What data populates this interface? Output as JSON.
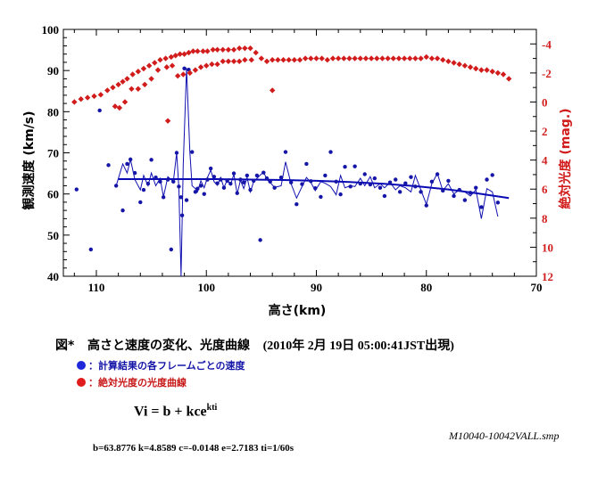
{
  "chart_data": {
    "type": "scatter",
    "title": "",
    "xlabel": "高さ(km)",
    "ylabel": "観測速度 (km/s)",
    "y2label": "絶対光度 (mag.)",
    "xlim": [
      113,
      70
    ],
    "ylim": [
      40,
      100
    ],
    "y2lim": [
      12,
      -5
    ],
    "xticks": [
      110,
      100,
      90,
      80,
      70
    ],
    "yticks": [
      40,
      50,
      60,
      70,
      80,
      90,
      100
    ],
    "y2ticks": [
      -4,
      -2,
      0,
      2,
      4,
      6,
      8,
      10,
      12
    ],
    "grid": false,
    "colors": {
      "velocity": "#1515a8",
      "magnitude": "#d21c1c",
      "fit": "#0a0ab4"
    },
    "series": [
      {
        "name": "velocity",
        "axis": "left",
        "marker": "dot",
        "x": [
          111.8,
          110.5,
          109.7,
          108.9,
          108.2,
          107.6,
          107.2,
          106.9,
          106.5,
          106.0,
          105.7,
          105.3,
          105.0,
          104.6,
          104.2,
          103.9,
          103.5,
          103.2,
          103.0,
          102.7,
          102.5,
          102.3,
          102.2,
          102.0,
          101.8,
          101.6,
          101.3,
          101.0,
          100.8,
          100.5,
          100.2,
          99.9,
          99.6,
          99.3,
          99.0,
          98.7,
          98.4,
          98.1,
          97.8,
          97.5,
          97.2,
          96.9,
          96.6,
          96.3,
          96.0,
          95.7,
          95.4,
          95.1,
          94.8,
          94.5,
          94.2,
          93.8,
          93.2,
          92.8,
          92.3,
          91.8,
          91.3,
          90.9,
          90.5,
          90.1,
          89.6,
          89.2,
          88.7,
          88.2,
          87.8,
          87.4,
          86.9,
          86.5,
          86.0,
          85.6,
          85.1,
          84.7,
          84.2,
          83.8,
          83.3,
          82.8,
          82.4,
          81.9,
          81.4,
          81.0,
          80.5,
          80.0,
          79.5,
          79.0,
          78.5,
          78.0,
          77.5,
          77.0,
          76.5,
          76.0,
          75.5,
          75.0,
          74.5,
          74.0,
          73.5
        ],
        "y": [
          61.1,
          46.5,
          80.3,
          67.0,
          62.0,
          56.0,
          67.3,
          68.4,
          65.1,
          58.0,
          61.0,
          62.5,
          68.3,
          64.0,
          63.0,
          59.2,
          63.5,
          46.5,
          63.0,
          70.0,
          61.8,
          59.2,
          54.8,
          90.5,
          58.5,
          90.2,
          70.2,
          60.5,
          61.3,
          62.0,
          60.0,
          63.5,
          66.2,
          64.2,
          62.6,
          63.5,
          61.5,
          63.2,
          62.5,
          65.0,
          60.2,
          63.5,
          62.8,
          64.5,
          61.0,
          63.2,
          64.5,
          48.8,
          65.2,
          63.8,
          63.0,
          61.5,
          64.0,
          70.2,
          62.8,
          57.5,
          62.4,
          67.3,
          63.1,
          61.4,
          59.3,
          64.5,
          70.2,
          63.0,
          59.9,
          66.6,
          61.8,
          66.7,
          62.5,
          64.8,
          62.3,
          63.8,
          61.5,
          59.5,
          62.8,
          63.5,
          60.5,
          62.6,
          64.1,
          61.8,
          60.5,
          57.2,
          63.0,
          64.8,
          60.8,
          63.2,
          59.5,
          61.0,
          58.5,
          60.3,
          61.5,
          56.8,
          63.5,
          64.6,
          57.9
        ]
      },
      {
        "name": "velocity-line",
        "axis": "left",
        "type": "line",
        "x": [
          108.2,
          107.6,
          107.2,
          106.9,
          106.5,
          106.0,
          105.7,
          105.3,
          105.0,
          104.6,
          104.2,
          103.9,
          103.5,
          103.0,
          102.7,
          102.5,
          102.3,
          102.1,
          101.8,
          101.5,
          101.3,
          101.0,
          100.8,
          100.5,
          100.2,
          99.9,
          99.6,
          99.3,
          99.0,
          98.7,
          98.4,
          98.1,
          97.8,
          97.5,
          97.2,
          96.9,
          96.6,
          96.3,
          96.0,
          95.7,
          95.4,
          94.8,
          94.5,
          94.2,
          93.8,
          93.2,
          92.8,
          92.3,
          91.8,
          91.3,
          90.9,
          90.5,
          90.1,
          89.6,
          89.2,
          88.7,
          88.2,
          87.8,
          87.4,
          86.9,
          86.5,
          86.0,
          85.6,
          85.1,
          84.7,
          84.2,
          83.8,
          83.3,
          82.8,
          82.4,
          81.9,
          81.4,
          81.0,
          80.5,
          80.0,
          79.5,
          79.0,
          78.5,
          78.0,
          77.5,
          77.0,
          76.5,
          76.0,
          75.5,
          75.0,
          74.5,
          74.0,
          73.5
        ],
        "y": [
          62.0,
          67.3,
          65.1,
          68.4,
          63.5,
          61.0,
          64.5,
          62.0,
          65.1,
          62.0,
          63.8,
          59.3,
          64.2,
          63.0,
          70.0,
          61.5,
          40.0,
          67.3,
          90.6,
          70.2,
          62.0,
          61.3,
          60.5,
          63.2,
          61.5,
          64.0,
          65.8,
          63.0,
          62.1,
          64.0,
          61.5,
          63.5,
          62.2,
          64.8,
          60.0,
          63.3,
          61.3,
          64.0,
          60.5,
          63.0,
          63.8,
          65.4,
          63.5,
          62.8,
          61.6,
          62.0,
          67.8,
          62.5,
          59.0,
          61.8,
          64.0,
          62.8,
          60.8,
          63.0,
          62.6,
          61.8,
          59.8,
          64.5,
          61.5,
          62.0,
          61.8,
          63.8,
          62.0,
          64.2,
          61.5,
          62.5,
          61.5,
          62.8,
          61.0,
          62.0,
          61.5,
          60.5,
          64.5,
          61.0,
          57.5,
          62.5,
          65.0,
          60.8,
          62.5,
          60.0,
          61.0,
          60.5,
          59.5,
          61.0,
          54.0,
          61.3,
          60.5,
          54.5
        ]
      },
      {
        "name": "fit",
        "axis": "left",
        "type": "line",
        "x": [
          108.0,
          105.0,
          102.0,
          99.0,
          96.0,
          93.0,
          90.0,
          87.0,
          84.0,
          81.0,
          78.0,
          75.5,
          72.5
        ],
        "y": [
          63.6,
          63.6,
          63.6,
          63.6,
          63.5,
          63.4,
          63.2,
          62.9,
          62.5,
          61.9,
          61.1,
          60.2,
          59.0
        ]
      },
      {
        "name": "magnitude",
        "axis": "right",
        "marker": "diamond",
        "x": [
          112.0,
          111.4,
          110.8,
          110.2,
          109.6,
          109.0,
          108.5,
          108.0,
          107.6,
          107.2,
          106.7,
          106.2,
          105.7,
          105.2,
          104.7,
          104.2,
          103.7,
          103.2,
          102.8,
          102.4,
          102.0,
          101.6,
          101.2,
          100.8,
          100.3,
          99.9,
          99.4,
          99.0,
          98.5,
          98.0,
          97.5,
          97.0,
          96.5,
          96.0,
          95.5,
          95.0,
          94.5,
          94.0,
          93.5,
          93.0,
          92.5,
          92.0,
          91.5,
          91.0,
          90.5,
          90.0,
          89.5,
          89.0,
          88.5,
          88.0,
          87.5,
          87.0,
          86.5,
          86.0,
          85.5,
          85.0,
          84.5,
          84.0,
          83.5,
          83.0,
          82.5,
          82.0,
          81.5,
          81.0,
          80.5,
          80.0,
          79.5,
          79.0,
          78.5,
          78.0,
          77.5,
          77.0,
          76.5,
          76.0,
          75.5,
          75.0,
          74.5,
          74.0,
          73.5,
          73.0,
          72.5,
          108.3,
          107.9,
          107.4,
          106.8,
          106.2,
          105.6,
          105.0,
          104.4,
          103.6,
          103.1,
          102.6,
          102.1,
          101.5,
          101.0,
          100.5,
          100.0,
          99.5,
          99.0,
          98.5,
          98.0,
          97.5,
          97.0,
          96.5,
          95.9,
          103.5,
          94.0
        ],
        "y": [
          0.0,
          -0.2,
          -0.3,
          -0.4,
          -0.5,
          -0.8,
          -1.0,
          -1.2,
          -1.4,
          -1.6,
          -1.9,
          -2.1,
          -2.3,
          -2.5,
          -2.7,
          -2.9,
          -3.0,
          -3.1,
          -3.2,
          -3.3,
          -3.3,
          -3.4,
          -3.5,
          -3.5,
          -3.5,
          -3.5,
          -3.6,
          -3.6,
          -3.6,
          -3.6,
          -3.6,
          -3.7,
          -3.7,
          -3.7,
          -3.4,
          -3.0,
          -2.8,
          -2.9,
          -2.9,
          -2.9,
          -2.9,
          -2.9,
          -2.9,
          -3.0,
          -3.0,
          -3.0,
          -3.0,
          -2.9,
          -3.0,
          -3.0,
          -3.0,
          -3.0,
          -3.0,
          -3.0,
          -3.0,
          -3.0,
          -3.0,
          -3.0,
          -3.0,
          -3.0,
          -3.0,
          -3.0,
          -3.0,
          -3.0,
          -3.0,
          -3.1,
          -3.0,
          -3.0,
          -2.9,
          -2.8,
          -2.7,
          -2.6,
          -2.5,
          -2.4,
          -2.3,
          -2.2,
          -2.2,
          -2.1,
          -2.0,
          -1.9,
          -1.6,
          0.3,
          0.4,
          0.0,
          -0.9,
          -0.9,
          -1.2,
          -1.6,
          -2.2,
          -2.4,
          -2.5,
          -1.8,
          -1.9,
          -2.0,
          -2.2,
          -2.4,
          -2.5,
          -2.6,
          -2.6,
          -2.8,
          -2.8,
          -2.8,
          -2.8,
          -2.9,
          -2.9,
          1.3,
          -0.8
        ]
      }
    ]
  },
  "caption": {
    "figure_label": "図*",
    "title": "高さと速度の変化、光度曲線",
    "datetime": "(2010年 2月 19日 05:00:41JST出現)"
  },
  "legend": {
    "velocity_label": "：計算結果の各フレームごとの速度",
    "magnitude_label": "：絶対光度の光度曲線"
  },
  "formula": {
    "base": "Vi = b + kce",
    "exponent": "kti"
  },
  "source_id": "M10040-10042VALL.smp",
  "params": "b=63.8776  k=4.8589  c=-0.0148  e=2.7183  ti=1/60s"
}
